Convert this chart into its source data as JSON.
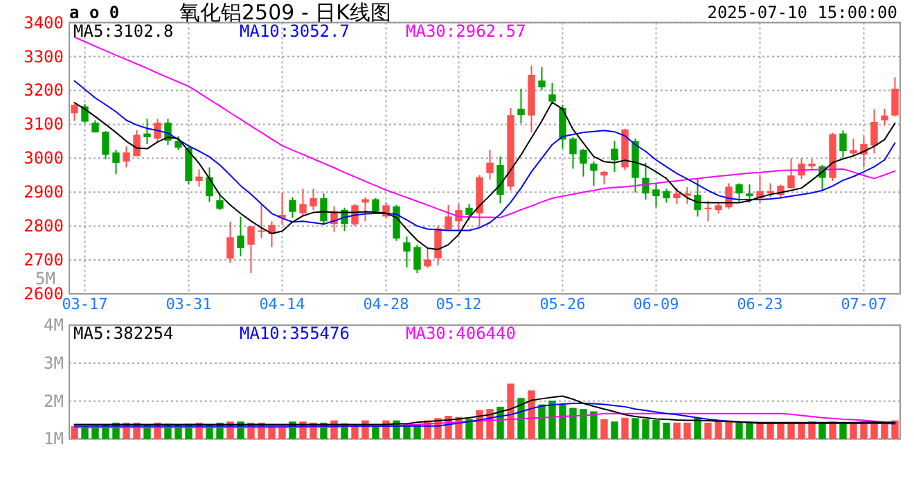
{
  "chart_data": [
    {
      "type": "candlestick",
      "title": "氧化铝2509 - 日K线图",
      "subtitle": "2025-07-10 15:00:00",
      "annotations": [
        "a o 0",
        "5M"
      ],
      "categories": [
        null,
        "03-17",
        null,
        null,
        null,
        null,
        null,
        null,
        null,
        null,
        null,
        "03-31",
        null,
        null,
        null,
        null,
        null,
        null,
        null,
        null,
        "04-14",
        null,
        null,
        null,
        null,
        null,
        null,
        null,
        null,
        null,
        "04-28",
        null,
        null,
        null,
        null,
        null,
        null,
        "05-12",
        null,
        null,
        null,
        null,
        null,
        null,
        null,
        null,
        null,
        "05-26",
        null,
        null,
        null,
        null,
        null,
        null,
        null,
        null,
        "06-09",
        null,
        null,
        null,
        null,
        null,
        null,
        null,
        null,
        null,
        "06-23",
        null,
        null,
        null,
        null,
        null,
        null,
        null,
        null,
        null,
        "07-07",
        null,
        null,
        null
      ],
      "ohlc": [
        [
          3133,
          3160,
          3110,
          3157
        ],
        [
          3153,
          3160,
          3103,
          3108
        ],
        [
          3105,
          3112,
          3076,
          3076
        ],
        [
          3078,
          3080,
          2997,
          3010
        ],
        [
          3017,
          3025,
          2953,
          2986
        ],
        [
          2990,
          3035,
          2973,
          3017
        ],
        [
          3006,
          3082,
          3006,
          3069
        ],
        [
          3073,
          3116,
          3041,
          3062
        ],
        [
          3058,
          3116,
          3048,
          3105
        ],
        [
          3105,
          3116,
          3039,
          3052
        ],
        [
          3051,
          3065,
          3024,
          3031
        ],
        [
          3031,
          3037,
          2923,
          2933
        ],
        [
          2933,
          2967,
          2916,
          2946
        ],
        [
          2944,
          2973,
          2871,
          2888
        ],
        [
          2876,
          2896,
          2847,
          2851
        ],
        [
          2704,
          2813,
          2692,
          2767
        ],
        [
          2772,
          2827,
          2711,
          2735
        ],
        [
          2745,
          2800,
          2661,
          2799
        ],
        [
          2785,
          2862,
          2765,
          2787
        ],
        [
          2776,
          2814,
          2738,
          2803
        ],
        [
          2824,
          2899,
          2803,
          2833
        ],
        [
          2877,
          2885,
          2824,
          2842
        ],
        [
          2837,
          2910,
          2831,
          2865
        ],
        [
          2858,
          2910,
          2847,
          2882
        ],
        [
          2882,
          2896,
          2803,
          2814
        ],
        [
          2806,
          2858,
          2783,
          2844
        ],
        [
          2848,
          2854,
          2786,
          2806
        ],
        [
          2805,
          2865,
          2800,
          2861
        ],
        [
          2869,
          2885,
          2814,
          2879
        ],
        [
          2879,
          2883,
          2837,
          2844
        ],
        [
          2828,
          2869,
          2824,
          2861
        ],
        [
          2858,
          2862,
          2756,
          2763
        ],
        [
          2752,
          2769,
          2678,
          2725
        ],
        [
          2738,
          2745,
          2661,
          2671
        ],
        [
          2681,
          2735,
          2676,
          2701
        ],
        [
          2705,
          2801,
          2684,
          2793
        ],
        [
          2790,
          2862,
          2785,
          2828
        ],
        [
          2814,
          2865,
          2786,
          2847
        ],
        [
          2854,
          2865,
          2817,
          2833
        ],
        [
          2837,
          2950,
          2797,
          2944
        ],
        [
          2956,
          3025,
          2937,
          2987
        ],
        [
          2980,
          3005,
          2867,
          2892
        ],
        [
          2916,
          3148,
          2905,
          3127
        ],
        [
          3146,
          3205,
          3103,
          3127
        ],
        [
          3126,
          3273,
          3076,
          3246
        ],
        [
          3229,
          3269,
          3201,
          3209
        ],
        [
          3188,
          3222,
          3160,
          3167
        ],
        [
          3148,
          3157,
          3028,
          3055
        ],
        [
          3058,
          3062,
          2969,
          3012
        ],
        [
          3025,
          3028,
          2946,
          2984
        ],
        [
          2984,
          2990,
          2919,
          2963
        ],
        [
          2949,
          2962,
          2923,
          2960
        ],
        [
          3028,
          3051,
          2960,
          2994
        ],
        [
          2973,
          3087,
          2965,
          3085
        ],
        [
          3051,
          3058,
          2899,
          2942
        ],
        [
          2942,
          2987,
          2878,
          2896
        ],
        [
          2908,
          2926,
          2855,
          2888
        ],
        [
          2903,
          2910,
          2869,
          2882
        ],
        [
          2882,
          2912,
          2865,
          2896
        ],
        [
          2889,
          2915,
          2865,
          2896
        ],
        [
          2892,
          2942,
          2828,
          2847
        ],
        [
          2850,
          2874,
          2814,
          2854
        ],
        [
          2847,
          2871,
          2837,
          2861
        ],
        [
          2855,
          2926,
          2851,
          2916
        ],
        [
          2923,
          2926,
          2869,
          2896
        ],
        [
          2896,
          2923,
          2869,
          2888
        ],
        [
          2882,
          2950,
          2869,
          2903
        ],
        [
          2896,
          2926,
          2885,
          2903
        ],
        [
          2892,
          2922,
          2882,
          2919
        ],
        [
          2912,
          2999,
          2910,
          2949
        ],
        [
          2949,
          2999,
          2939,
          2984
        ],
        [
          2976,
          2998,
          2967,
          2984
        ],
        [
          2976,
          2980,
          2905,
          2942
        ],
        [
          2942,
          3075,
          2933,
          3071
        ],
        [
          3073,
          3082,
          3001,
          3021
        ],
        [
          3014,
          3058,
          3005,
          3024
        ],
        [
          3011,
          3065,
          2973,
          3042
        ],
        [
          3037,
          3144,
          3014,
          3107
        ],
        [
          3112,
          3146,
          3096,
          3126
        ],
        [
          3126,
          3239,
          3123,
          3205
        ]
      ],
      "colors": [
        "#ff5050",
        "#00a000",
        "#00a000",
        "#00a000",
        "#00a000",
        "#ff5050",
        "#ff5050",
        "#00a000",
        "#ff5050",
        "#00a000",
        "#00a000",
        "#00a000",
        "#ff5050",
        "#00a000",
        "#00a000",
        "#ff5050",
        "#00a000",
        "#ff5050",
        "#ff5050",
        "#ff5050",
        "#ff5050",
        "#00a000",
        "#ff5050",
        "#ff5050",
        "#00a000",
        "#ff5050",
        "#00a000",
        "#ff5050",
        "#ff5050",
        "#00a000",
        "#ff5050",
        "#00a000",
        "#00a000",
        "#00a000",
        "#ff5050",
        "#ff5050",
        "#ff5050",
        "#ff5050",
        "#00a000",
        "#ff5050",
        "#ff5050",
        "#00a000",
        "#ff5050",
        "#00a000",
        "#ff5050",
        "#00a000",
        "#00a000",
        "#00a000",
        "#00a000",
        "#00a000",
        "#00a000",
        "#ff5050",
        "#00a000",
        "#ff5050",
        "#00a000",
        "#00a000",
        "#00a000",
        "#00a000",
        "#ff5050",
        "#ff5050",
        "#00a000",
        "#ff5050",
        "#ff5050",
        "#ff5050",
        "#00a000",
        "#00a000",
        "#ff5050",
        "#ff5050",
        "#ff5050",
        "#ff5050",
        "#ff5050",
        "#ff5050",
        "#00a000",
        "#ff5050",
        "#00a000",
        "#ff5050",
        "#ff5050",
        "#ff5050",
        "#ff5050",
        "#ff5050"
      ],
      "series": [
        {
          "name": "MA5:3102.8",
          "color": "#000000",
          "type": "line",
          "values": [
            3164,
            3145,
            3123,
            3100,
            3076,
            3050,
            3030,
            3028,
            3048,
            3062,
            3058,
            3021,
            2985,
            2940,
            2892,
            2862,
            2837,
            2815,
            2795,
            2778,
            2785,
            2812,
            2830,
            2840,
            2842,
            2840,
            2840,
            2840,
            2842,
            2841,
            2838,
            2825,
            2790,
            2758,
            2735,
            2731,
            2745,
            2775,
            2825,
            2860,
            2890,
            2922,
            2965,
            3010,
            3060,
            3110,
            3165,
            3145,
            3085,
            3045,
            3005,
            2990,
            2987,
            2994,
            2988,
            2978,
            2960,
            2940,
            2905,
            2883,
            2870,
            2869,
            2869,
            2869,
            2869,
            2875,
            2885,
            2893,
            2899,
            2905,
            2912,
            2935,
            2960,
            2987,
            2998,
            3007,
            3020,
            3035,
            3055,
            3103
          ]
        },
        {
          "name": "MA10:3052.7",
          "color": "#0000ff",
          "type": "line",
          "values": [
            3228,
            3203,
            3178,
            3158,
            3137,
            3112,
            3098,
            3088,
            3082,
            3074,
            3055,
            3036,
            3021,
            3004,
            2980,
            2950,
            2919,
            2894,
            2865,
            2837,
            2823,
            2812,
            2814,
            2810,
            2806,
            2815,
            2826,
            2832,
            2836,
            2837,
            2837,
            2835,
            2818,
            2800,
            2791,
            2789,
            2787,
            2787,
            2787,
            2795,
            2810,
            2835,
            2870,
            2912,
            2960,
            3000,
            3040,
            3064,
            3070,
            3076,
            3079,
            3082,
            3078,
            3066,
            3040,
            3020,
            2995,
            2975,
            2955,
            2939,
            2922,
            2905,
            2890,
            2882,
            2878,
            2878,
            2878,
            2880,
            2883,
            2888,
            2893,
            2898,
            2905,
            2918,
            2935,
            2946,
            2960,
            2975,
            2995,
            3045
          ]
        },
        {
          "name": "MA30:2962.57",
          "color": "#ff00ff",
          "type": "line",
          "values": [
            3357,
            3344,
            3330,
            3317,
            3304,
            3291,
            3278,
            3265,
            3251,
            3238,
            3225,
            3212,
            3193,
            3173,
            3154,
            3134,
            3115,
            3095,
            3076,
            3056,
            3037,
            3024,
            3011,
            2998,
            2985,
            2972,
            2958,
            2945,
            2932,
            2919,
            2906,
            2895,
            2884,
            2873,
            2862,
            2850,
            2839,
            2828,
            2827,
            2826,
            2826,
            2825,
            2836,
            2848,
            2859,
            2871,
            2882,
            2888,
            2894,
            2900,
            2905,
            2911,
            2914,
            2916,
            2919,
            2923,
            2926,
            2930,
            2933,
            2937,
            2940,
            2944,
            2947,
            2950,
            2953,
            2956,
            2958,
            2961,
            2964,
            2965,
            2965,
            2966,
            2967,
            2967,
            2968,
            2959,
            2949,
            2940,
            2951,
            2962
          ]
        }
      ],
      "ylim": [
        2600,
        3400
      ],
      "yticks": [
        2600,
        2700,
        2800,
        2900,
        3000,
        3100,
        3200,
        3300,
        3400
      ],
      "grid": true,
      "legend": "top"
    },
    {
      "type": "bar",
      "categories": [
        null,
        null,
        null,
        null,
        null,
        null,
        null,
        null,
        null,
        null,
        null,
        null,
        null,
        null,
        null,
        null,
        null,
        null,
        null,
        null,
        null,
        null,
        null,
        null,
        null,
        null,
        null,
        null,
        null,
        null,
        null,
        null,
        null,
        null,
        null,
        null,
        null,
        null,
        null,
        null,
        null,
        null,
        null,
        null,
        null,
        null,
        null,
        null,
        null,
        null,
        null,
        null,
        null,
        null,
        null,
        null,
        null,
        null,
        null,
        null,
        null,
        null,
        null,
        null,
        null,
        null,
        null,
        null,
        null,
        null,
        null,
        null,
        null,
        null,
        null,
        null,
        null,
        null,
        null,
        null
      ],
      "values": [
        1340000,
        1340000,
        1340000,
        1380000,
        1430000,
        1430000,
        1430000,
        1380000,
        1430000,
        1400000,
        1380000,
        1400000,
        1430000,
        1380000,
        1430000,
        1460000,
        1460000,
        1430000,
        1430000,
        1350000,
        1350000,
        1460000,
        1460000,
        1430000,
        1430000,
        1490000,
        1410000,
        1370000,
        1490000,
        1340000,
        1490000,
        1490000,
        1370000,
        1370000,
        1490000,
        1550000,
        1610000,
        1580000,
        1530000,
        1760000,
        1790000,
        1850000,
        2460000,
        2080000,
        2280000,
        1910000,
        2010000,
        1910000,
        1820000,
        1790000,
        1730000,
        1520000,
        1460000,
        1560000,
        1550000,
        1520000,
        1500000,
        1430000,
        1430000,
        1430000,
        1560000,
        1430000,
        1460000,
        1490000,
        1430000,
        1430000,
        1430000,
        1400000,
        1400000,
        1400000,
        1430000,
        1460000,
        1400000,
        1460000,
        1400000,
        1430000,
        1430000,
        1430000,
        1430000,
        1490000
      ],
      "colors": [
        "#ff5050",
        "#00a000",
        "#00a000",
        "#00a000",
        "#00a000",
        "#ff5050",
        "#ff5050",
        "#00a000",
        "#ff5050",
        "#00a000",
        "#00a000",
        "#00a000",
        "#ff5050",
        "#00a000",
        "#00a000",
        "#ff5050",
        "#00a000",
        "#ff5050",
        "#ff5050",
        "#ff5050",
        "#ff5050",
        "#00a000",
        "#ff5050",
        "#ff5050",
        "#00a000",
        "#ff5050",
        "#00a000",
        "#ff5050",
        "#ff5050",
        "#00a000",
        "#ff5050",
        "#00a000",
        "#00a000",
        "#00a000",
        "#ff5050",
        "#ff5050",
        "#ff5050",
        "#ff5050",
        "#00a000",
        "#ff5050",
        "#ff5050",
        "#00a000",
        "#ff5050",
        "#00a000",
        "#ff5050",
        "#00a000",
        "#00a000",
        "#00a000",
        "#00a000",
        "#00a000",
        "#00a000",
        "#ff5050",
        "#00a000",
        "#ff5050",
        "#00a000",
        "#00a000",
        "#00a000",
        "#00a000",
        "#ff5050",
        "#ff5050",
        "#00a000",
        "#ff5050",
        "#ff5050",
        "#ff5050",
        "#00a000",
        "#00a000",
        "#ff5050",
        "#ff5050",
        "#ff5050",
        "#ff5050",
        "#ff5050",
        "#ff5050",
        "#00a000",
        "#ff5050",
        "#00a000",
        "#ff5050",
        "#ff5050",
        "#ff5050",
        "#ff5050",
        "#ff5050"
      ],
      "series": [
        {
          "name": "MA5:382254",
          "color": "#000000",
          "type": "line",
          "values": [
            1380000,
            1380000,
            1380000,
            1380000,
            1380000,
            1380000,
            1380000,
            1380000,
            1380000,
            1380000,
            1380000,
            1380000,
            1380000,
            1380000,
            1380000,
            1380000,
            1380000,
            1380000,
            1380000,
            1380000,
            1380000,
            1380000,
            1380000,
            1380000,
            1380000,
            1380000,
            1380000,
            1380000,
            1380000,
            1380000,
            1380000,
            1400000,
            1400000,
            1440000,
            1460000,
            1480000,
            1500000,
            1530000,
            1560000,
            1600000,
            1640000,
            1720000,
            1790000,
            1900000,
            2020000,
            2060000,
            2100000,
            2130000,
            2050000,
            1940000,
            1860000,
            1790000,
            1720000,
            1640000,
            1590000,
            1560000,
            1530000,
            1520000,
            1500000,
            1490000,
            1490000,
            1480000,
            1470000,
            1460000,
            1450000,
            1440000,
            1430000,
            1430000,
            1430000,
            1430000,
            1430000,
            1430000,
            1430000,
            1430000,
            1430000,
            1430000,
            1440000,
            1440000,
            1430000,
            1430000
          ]
        },
        {
          "name": "MA10:355476",
          "color": "#0000ff",
          "type": "line",
          "values": [
            1340000,
            1340000,
            1340000,
            1340000,
            1340000,
            1340000,
            1340000,
            1340000,
            1340000,
            1340000,
            1340000,
            1340000,
            1340000,
            1340000,
            1340000,
            1340000,
            1340000,
            1340000,
            1340000,
            1340000,
            1340000,
            1340000,
            1340000,
            1340000,
            1340000,
            1340000,
            1340000,
            1340000,
            1340000,
            1340000,
            1340000,
            1340000,
            1340000,
            1340000,
            1340000,
            1340000,
            1380000,
            1420000,
            1460000,
            1500000,
            1550000,
            1600000,
            1640000,
            1720000,
            1800000,
            1870000,
            1900000,
            1920000,
            1940000,
            1940000,
            1930000,
            1910000,
            1880000,
            1850000,
            1790000,
            1750000,
            1710000,
            1670000,
            1640000,
            1600000,
            1560000,
            1520000,
            1490000,
            1470000,
            1450000,
            1430000,
            1410000,
            1410000,
            1410000,
            1410000,
            1410000,
            1410000,
            1410000,
            1410000,
            1410000,
            1410000,
            1410000,
            1410000,
            1410000,
            1400000
          ]
        },
        {
          "name": "MA30:406440",
          "color": "#ff00ff",
          "type": "line",
          "values": [
            1300000,
            1300000,
            1300000,
            1300000,
            1300000,
            1300000,
            1300000,
            1300000,
            1300000,
            1300000,
            1300000,
            1300000,
            1300000,
            1300000,
            1300000,
            1300000,
            1300000,
            1300000,
            1300000,
            1300000,
            1300000,
            1310000,
            1310000,
            1320000,
            1320000,
            1320000,
            1330000,
            1330000,
            1340000,
            1340000,
            1340000,
            1350000,
            1370000,
            1380000,
            1400000,
            1410000,
            1430000,
            1440000,
            1460000,
            1470000,
            1490000,
            1500000,
            1520000,
            1530000,
            1550000,
            1560000,
            1580000,
            1590000,
            1610000,
            1620000,
            1640000,
            1670000,
            1670000,
            1670000,
            1670000,
            1670000,
            1670000,
            1670000,
            1670000,
            1670000,
            1670000,
            1670000,
            1670000,
            1670000,
            1670000,
            1670000,
            1670000,
            1670000,
            1670000,
            1650000,
            1620000,
            1590000,
            1560000,
            1540000,
            1520000,
            1510000,
            1490000,
            1470000,
            1450000,
            1440000
          ]
        }
      ],
      "ylim": [
        1000000,
        4000000
      ],
      "yticks": [
        {
          "value": 1000000,
          "label": "1M"
        },
        {
          "value": 2000000,
          "label": "2M"
        },
        {
          "value": 3000000,
          "label": "3M"
        },
        {
          "value": 4000000,
          "label": "4M"
        }
      ],
      "grid": "y",
      "legend": "top"
    }
  ]
}
